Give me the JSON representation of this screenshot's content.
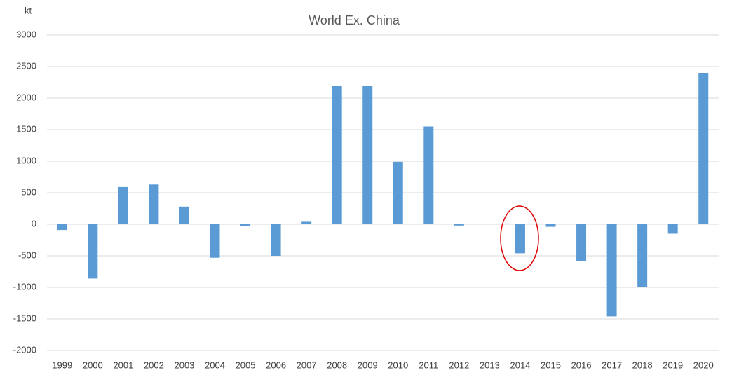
{
  "chart_data": {
    "type": "bar",
    "title": "World Ex. China",
    "y_unit": "kt",
    "categories": [
      "1999",
      "2000",
      "2001",
      "2002",
      "2003",
      "2004",
      "2005",
      "2006",
      "2007",
      "2008",
      "2009",
      "2010",
      "2011",
      "2012",
      "2013",
      "2014",
      "2015",
      "2016",
      "2017",
      "2018",
      "2019",
      "2020"
    ],
    "values": [
      -90,
      -860,
      590,
      630,
      280,
      -530,
      -30,
      -500,
      40,
      2200,
      2190,
      990,
      1550,
      -20,
      0,
      -460,
      -40,
      -580,
      -1460,
      -990,
      -150,
      2400
    ],
    "color": "#5b9bd5",
    "ylim": [
      -2000,
      3000
    ],
    "yticks": [
      -2000,
      -1500,
      -1000,
      -500,
      0,
      500,
      1000,
      1500,
      2000,
      2500,
      3000
    ],
    "grid": true
  }
}
